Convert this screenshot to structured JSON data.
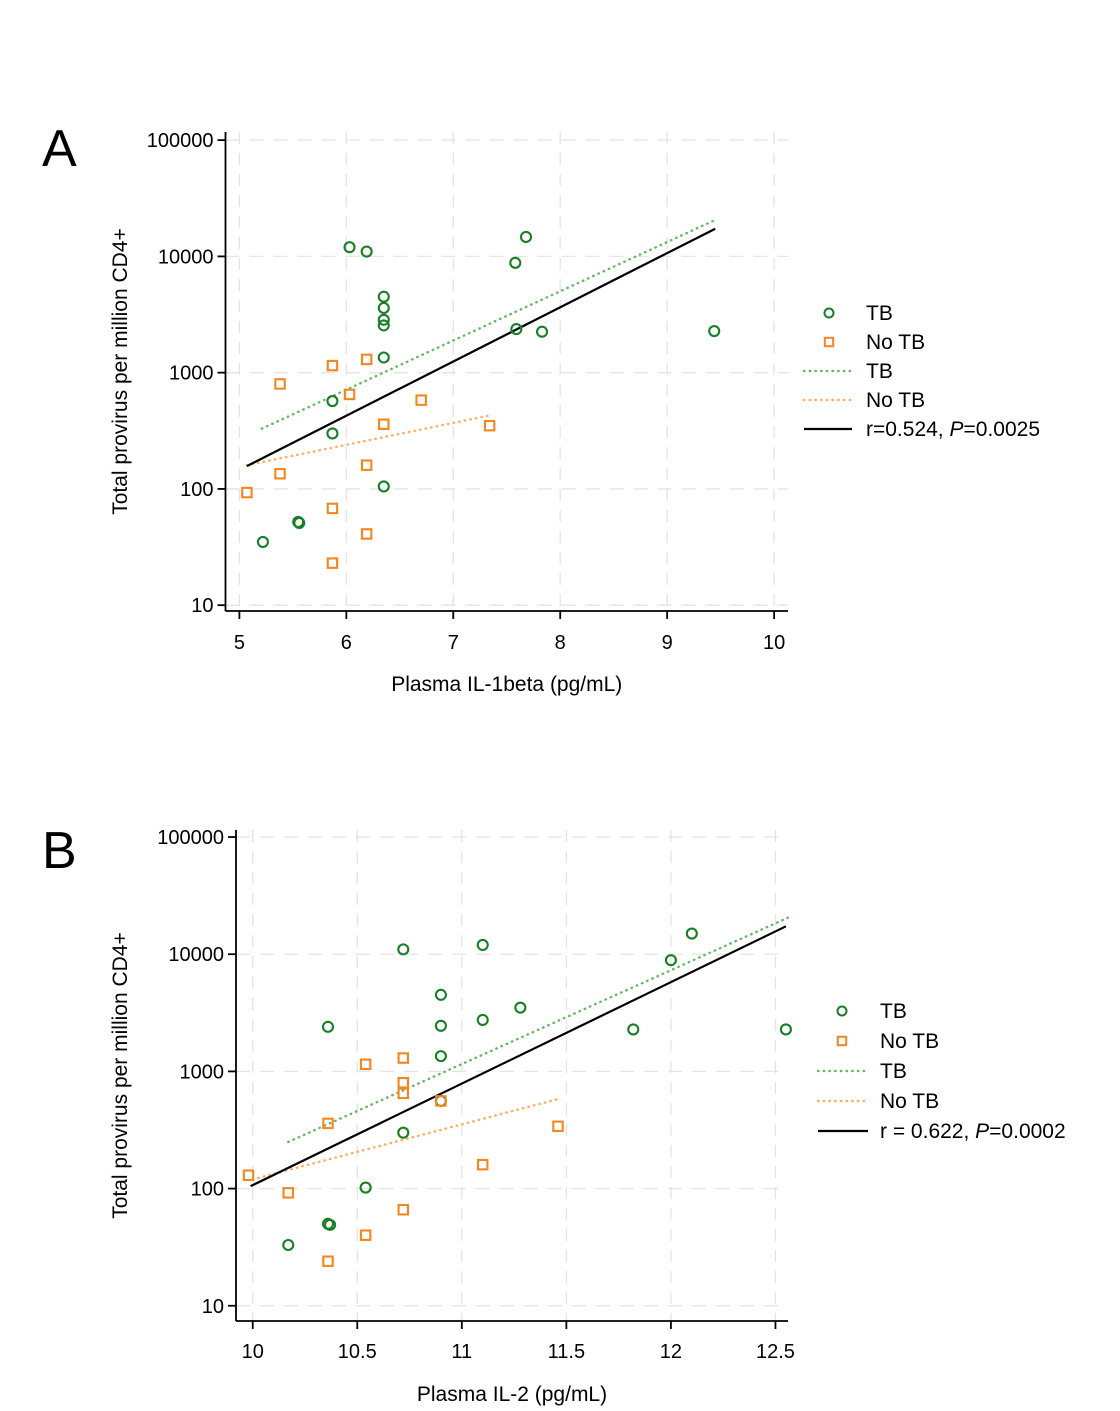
{
  "figure": {
    "background": "#ffffff",
    "description_visible_text_only": true
  },
  "colors": {
    "tb": "#177f25",
    "no_tb": "#f5861f",
    "tb_fit": "#63b863",
    "no_tb_fit": "#ffab63",
    "overall": "#000000",
    "grid": "#e4e4e4",
    "axis": "#000000",
    "text": "#000000"
  },
  "chart_data": [
    {
      "type": "scatter",
      "panel_label": "A",
      "xlabel": "Plasma IL-1beta (pg/mL)",
      "ylabel": "Total provirus per million CD4+",
      "x_ticks": [
        5,
        6,
        7,
        8,
        9,
        10
      ],
      "xlim": [
        4.87,
        10.13
      ],
      "y_scale": "log10",
      "y_ticks": [
        10,
        100,
        1000,
        10000,
        100000
      ],
      "ylim_log": [
        0.95,
        5.07
      ],
      "grid": true,
      "legend_position": "right",
      "series": [
        {
          "name": "TB",
          "marker": "circle",
          "color_key": "tb",
          "points": [
            [
              5.22,
              35
            ],
            [
              5.55,
              52
            ],
            [
              5.56,
              51
            ],
            [
              5.87,
              300
            ],
            [
              5.87,
              570
            ],
            [
              6.03,
              12000
            ],
            [
              6.19,
              11000
            ],
            [
              6.35,
              105
            ],
            [
              6.35,
              1350
            ],
            [
              6.35,
              2550
            ],
            [
              6.35,
              2850
            ],
            [
              6.35,
              3600
            ],
            [
              6.35,
              4500
            ],
            [
              7.58,
              8800
            ],
            [
              7.59,
              2370
            ],
            [
              7.68,
              14700
            ],
            [
              7.83,
              2250
            ],
            [
              9.44,
              2280
            ]
          ]
        },
        {
          "name": "No TB",
          "marker": "square",
          "color_key": "no_tb",
          "points": [
            [
              5.07,
              93
            ],
            [
              5.38,
              135
            ],
            [
              5.38,
              800
            ],
            [
              5.87,
              23
            ],
            [
              5.87,
              68
            ],
            [
              5.87,
              1150
            ],
            [
              6.03,
              650
            ],
            [
              6.19,
              41
            ],
            [
              6.19,
              160
            ],
            [
              6.19,
              1300
            ],
            [
              6.35,
              360
            ],
            [
              6.7,
              580
            ],
            [
              7.34,
              350
            ]
          ]
        }
      ],
      "fit_lines": [
        {
          "name": "TB",
          "style": "dotted",
          "color_key": "tb_fit",
          "from": [
            5.21,
            330
          ],
          "to": [
            9.47,
            21000
          ]
        },
        {
          "name": "No TB",
          "style": "dotted",
          "color_key": "no_tb_fit",
          "from": [
            5.07,
            160
          ],
          "to": [
            7.35,
            430
          ]
        },
        {
          "name": "overall",
          "style": "solid",
          "color_key": "overall",
          "from": [
            5.07,
            157
          ],
          "to": [
            9.45,
            17300
          ]
        }
      ],
      "legend": [
        {
          "symbol": "circle",
          "color_key": "tb",
          "label": "TB"
        },
        {
          "symbol": "square",
          "color_key": "no_tb",
          "label": "No TB"
        },
        {
          "symbol": "dotted",
          "color_key": "tb_fit",
          "label": "TB"
        },
        {
          "symbol": "dotted",
          "color_key": "no_tb_fit",
          "label": "No TB"
        },
        {
          "symbol": "solid",
          "color_key": "overall",
          "label_pre": "r=0.524, ",
          "label_italic": "P",
          "label_post": "=0.0025"
        }
      ]
    },
    {
      "type": "scatter",
      "panel_label": "B",
      "xlabel": "Plasma IL-2 (pg/mL)",
      "ylabel": "Total provirus per million CD4+",
      "x_ticks": [
        10,
        10.5,
        11,
        11.5,
        12,
        12.5
      ],
      "xlim": [
        9.92,
        12.56
      ],
      "y_scale": "log10",
      "y_ticks": [
        10,
        100,
        1000,
        10000,
        100000
      ],
      "ylim_log": [
        0.87,
        5.06
      ],
      "grid": true,
      "legend_position": "right",
      "series": [
        {
          "name": "TB",
          "marker": "circle",
          "color_key": "tb",
          "points": [
            [
              10.17,
              33
            ],
            [
              10.36,
              50
            ],
            [
              10.37,
              49
            ],
            [
              10.36,
              2400
            ],
            [
              10.54,
              102
            ],
            [
              10.72,
              300
            ],
            [
              10.72,
              11000
            ],
            [
              10.9,
              560
            ],
            [
              10.9,
              1350
            ],
            [
              10.9,
              2450
            ],
            [
              10.9,
              4500
            ],
            [
              11.1,
              2750
            ],
            [
              11.1,
              12000
            ],
            [
              11.28,
              3500
            ],
            [
              11.82,
              2280
            ],
            [
              12.0,
              8900
            ],
            [
              12.1,
              15000
            ],
            [
              12.55,
              2280
            ]
          ]
        },
        {
          "name": "No TB",
          "marker": "square",
          "color_key": "no_tb",
          "points": [
            [
              9.98,
              130
            ],
            [
              10.17,
              92
            ],
            [
              10.36,
              24
            ],
            [
              10.36,
              360
            ],
            [
              10.54,
              40
            ],
            [
              10.54,
              1150
            ],
            [
              10.72,
              66
            ],
            [
              10.72,
              650
            ],
            [
              10.72,
              800
            ],
            [
              10.72,
              1300
            ],
            [
              10.9,
              560
            ],
            [
              11.1,
              160
            ],
            [
              11.46,
              340
            ]
          ]
        }
      ],
      "fit_lines": [
        {
          "name": "TB",
          "style": "dotted",
          "color_key": "tb_fit",
          "from": [
            10.17,
            250
          ],
          "to": [
            12.56,
            20500
          ]
        },
        {
          "name": "No TB",
          "style": "dotted",
          "color_key": "no_tb_fit",
          "from": [
            10.0,
            120
          ],
          "to": [
            11.46,
            580
          ]
        },
        {
          "name": "overall",
          "style": "solid",
          "color_key": "overall",
          "from": [
            9.99,
            105
          ],
          "to": [
            12.55,
            17300
          ]
        }
      ],
      "legend": [
        {
          "symbol": "circle",
          "color_key": "tb",
          "label": "TB"
        },
        {
          "symbol": "square",
          "color_key": "no_tb",
          "label": "No TB"
        },
        {
          "symbol": "dotted",
          "color_key": "tb_fit",
          "label": "TB"
        },
        {
          "symbol": "dotted",
          "color_key": "no_tb_fit",
          "label": "No TB"
        },
        {
          "symbol": "solid",
          "color_key": "overall",
          "label_pre": "r = 0.622, ",
          "label_italic": "P",
          "label_post": "=0.0002"
        }
      ]
    }
  ]
}
